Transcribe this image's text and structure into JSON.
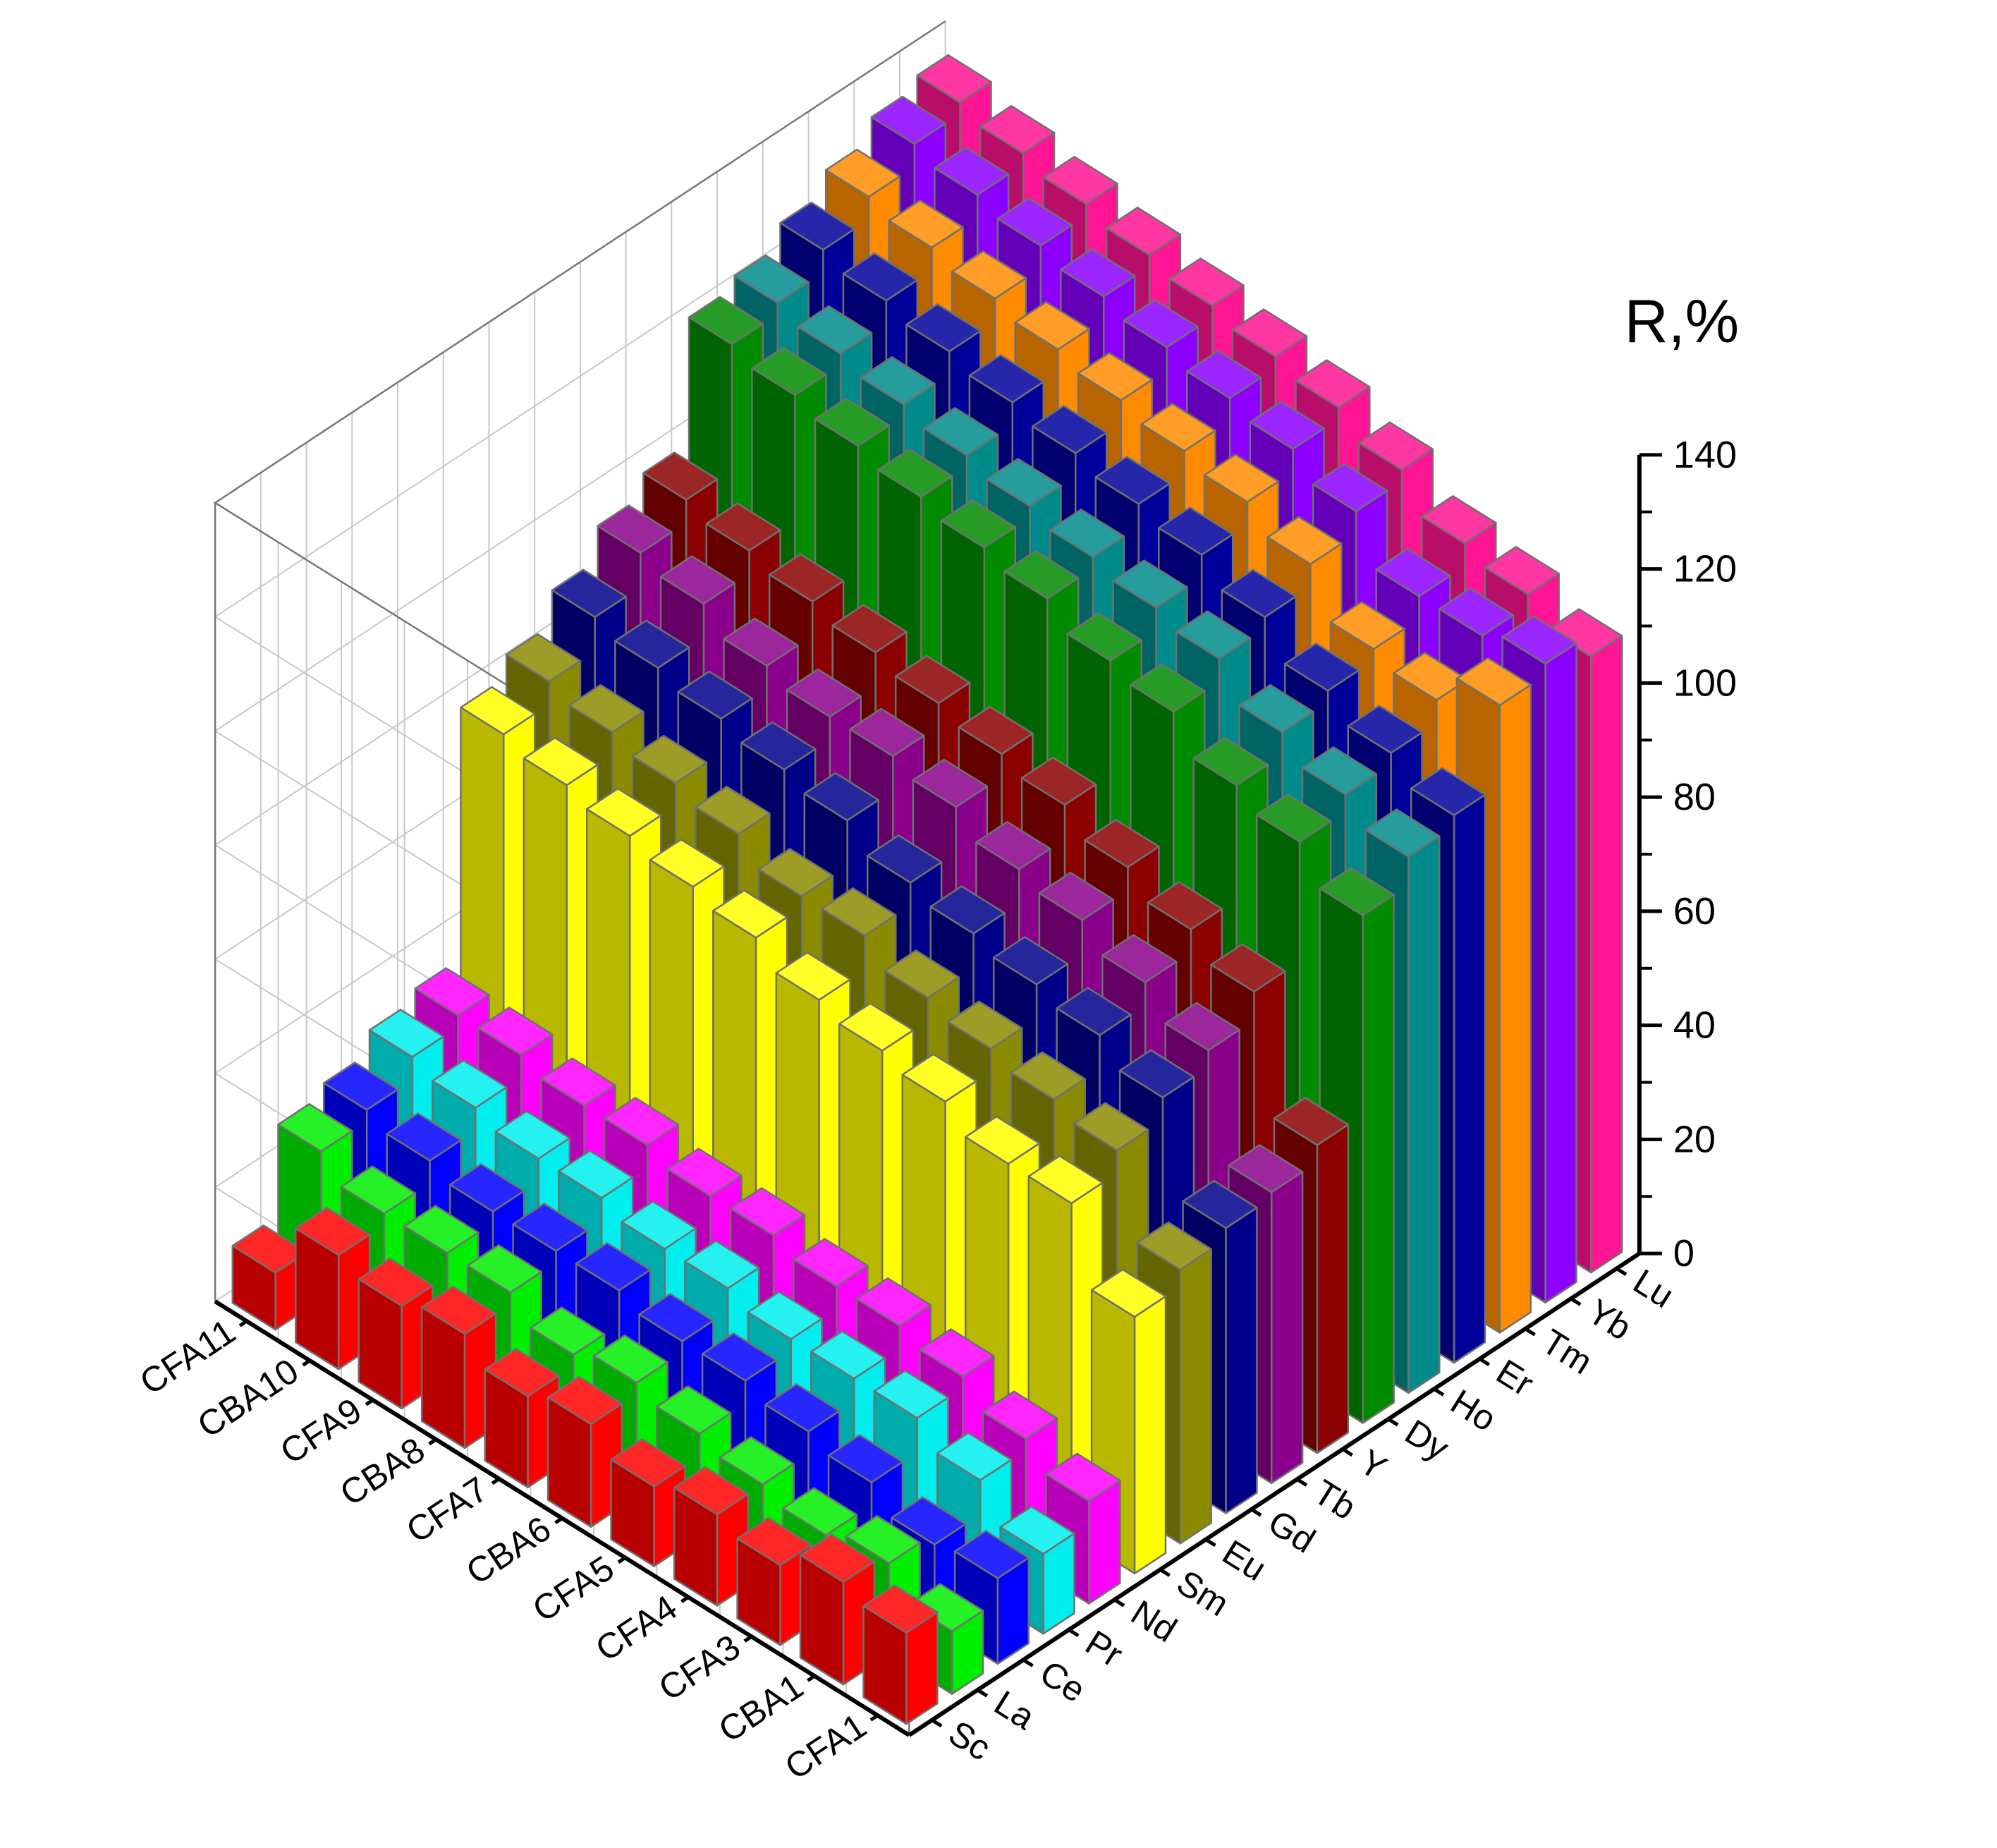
{
  "chart_data": {
    "type": "bar-3d",
    "title": "",
    "zlabel": "R,%",
    "zlim": [
      0,
      140
    ],
    "z_ticks": [
      "0",
      "20",
      "40",
      "60",
      "80",
      "100",
      "120",
      "140"
    ],
    "samples": [
      "CFA1",
      "CBA1",
      "CFA3",
      "CFA4",
      "CFA5",
      "CBA6",
      "CFA7",
      "CBA8",
      "CFA9",
      "CBA10",
      "CFA11"
    ],
    "elements": [
      "Sc",
      "La",
      "Ce",
      "Pr",
      "Nd",
      "Sm",
      "Eu",
      "Gd",
      "Tb",
      "Y",
      "Dy",
      "Ho",
      "Er",
      "Tm",
      "Yb",
      "Lu"
    ],
    "colors": [
      "#ff0000",
      "#00ee00",
      "#0000ff",
      "#00eeee",
      "#ff00ff",
      "#ffff00",
      "#8b8b00",
      "#00008b",
      "#8b008b",
      "#8b0000",
      "#008b00",
      "#008b8b",
      "#00009b",
      "#ff8c00",
      "#8b00ff",
      "#ff1493"
    ],
    "grid": true,
    "values": [
      [
        16,
        11,
        15,
        14,
        18,
        45,
        48,
        50,
        51,
        54,
        89,
        94,
        96,
        110,
        112,
        108
      ],
      [
        18,
        16,
        14,
        20,
        22,
        58,
        62,
        66,
        69,
        74,
        95,
        98,
        100,
        104,
        110,
        112
      ],
      [
        14,
        14,
        18,
        24,
        26,
        58,
        64,
        70,
        74,
        78,
        98,
        102,
        104,
        106,
        110,
        114
      ],
      [
        16,
        16,
        20,
        24,
        28,
        62,
        66,
        72,
        78,
        82,
        104,
        108,
        110,
        114,
        118,
        120
      ],
      [
        14,
        18,
        22,
        24,
        28,
        64,
        68,
        74,
        80,
        86,
        106,
        110,
        114,
        118,
        122,
        124
      ],
      [
        18,
        20,
        22,
        26,
        30,
        66,
        72,
        76,
        84,
        88,
        110,
        112,
        116,
        120,
        124,
        126
      ],
      [
        16,
        18,
        24,
        26,
        30,
        70,
        72,
        80,
        86,
        90,
        112,
        114,
        118,
        122,
        126,
        128
      ],
      [
        20,
        22,
        24,
        28,
        32,
        72,
        76,
        82,
        86,
        92,
        114,
        116,
        120,
        124,
        128,
        130
      ],
      [
        18,
        22,
        24,
        28,
        32,
        74,
        78,
        84,
        88,
        94,
        116,
        118,
        122,
        126,
        130,
        132
      ],
      [
        20,
        22,
        26,
        30,
        34,
        76,
        80,
        86,
        92,
        96,
        118,
        120,
        124,
        128,
        132,
        134
      ],
      [
        10,
        26,
        28,
        32,
        34,
        78,
        82,
        88,
        94,
        98,
        120,
        122,
        126,
        130,
        134,
        136
      ]
    ]
  }
}
